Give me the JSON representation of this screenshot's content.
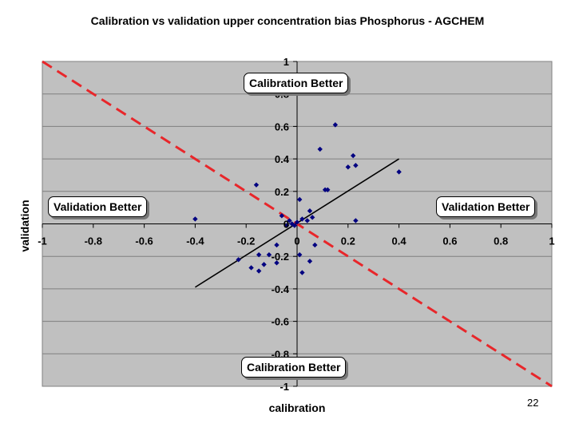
{
  "slide_number": "22",
  "chart_data": {
    "type": "scatter",
    "title": "Calibration vs validation upper concentration bias Phosphorus - AGCHEM",
    "xlabel": "calibration",
    "ylabel": "validation",
    "xlim": [
      -1,
      1
    ],
    "ylim": [
      -1,
      1
    ],
    "x_ticks": [
      -1,
      -0.8,
      -0.6,
      -0.4,
      -0.2,
      0,
      0.2,
      0.4,
      0.6,
      0.8,
      1
    ],
    "y_ticks": [
      -1,
      -0.8,
      -0.6,
      -0.4,
      -0.2,
      0,
      0.2,
      0.4,
      0.6,
      0.8,
      1
    ],
    "x_tick_labels": [
      "-1",
      "-0.8",
      "-0.6",
      "-0.4",
      "-0.2",
      "0",
      "0.2",
      "0.4",
      "0.6",
      "0.8",
      "1"
    ],
    "y_tick_labels": [
      "-1",
      "-0.8",
      "-0.6",
      "-0.4",
      "-0.2",
      "0",
      "0.2",
      "0.4",
      "0.6",
      "0.8",
      "1"
    ],
    "grid": true,
    "legend": "none",
    "colors": {
      "plot_background": "#c0c0c0",
      "gridline": "#7f7f7f",
      "points": "#000080",
      "trend_line": "#000000",
      "reference_line": "#e8262a"
    },
    "points": [
      {
        "x": -0.4,
        "y": 0.03
      },
      {
        "x": -0.23,
        "y": -0.22
      },
      {
        "x": -0.18,
        "y": -0.27
      },
      {
        "x": -0.16,
        "y": 0.24
      },
      {
        "x": -0.15,
        "y": -0.29
      },
      {
        "x": -0.15,
        "y": -0.19
      },
      {
        "x": -0.13,
        "y": -0.25
      },
      {
        "x": -0.11,
        "y": -0.19
      },
      {
        "x": -0.08,
        "y": -0.13
      },
      {
        "x": -0.08,
        "y": -0.24
      },
      {
        "x": -0.06,
        "y": 0.05
      },
      {
        "x": -0.04,
        "y": -0.01
      },
      {
        "x": -0.03,
        "y": 0.02
      },
      {
        "x": -0.02,
        "y": 0.0
      },
      {
        "x": -0.01,
        "y": -0.01
      },
      {
        "x": 0.0,
        "y": 0.01
      },
      {
        "x": 0.01,
        "y": -0.19
      },
      {
        "x": 0.01,
        "y": 0.15
      },
      {
        "x": 0.02,
        "y": 0.03
      },
      {
        "x": 0.02,
        "y": -0.3
      },
      {
        "x": 0.04,
        "y": 0.02
      },
      {
        "x": 0.05,
        "y": -0.23
      },
      {
        "x": 0.05,
        "y": 0.08
      },
      {
        "x": 0.06,
        "y": 0.04
      },
      {
        "x": 0.07,
        "y": -0.13
      },
      {
        "x": 0.09,
        "y": 0.46
      },
      {
        "x": 0.11,
        "y": 0.21
      },
      {
        "x": 0.12,
        "y": 0.21
      },
      {
        "x": 0.15,
        "y": 0.61
      },
      {
        "x": 0.2,
        "y": 0.35
      },
      {
        "x": 0.22,
        "y": 0.42
      },
      {
        "x": 0.23,
        "y": 0.36
      },
      {
        "x": 0.23,
        "y": 0.02
      },
      {
        "x": 0.4,
        "y": 0.32
      }
    ],
    "trend_line": {
      "x": [
        -0.4,
        0.4
      ],
      "y": [
        -0.39,
        0.4
      ]
    },
    "reference_line": {
      "x": [
        -1,
        1
      ],
      "y": [
        1,
        -1
      ]
    },
    "annotations": {
      "top": "Calibration Better",
      "bottom": "Calibration Better",
      "left": "Validation Better",
      "right": "Validation Better"
    }
  }
}
